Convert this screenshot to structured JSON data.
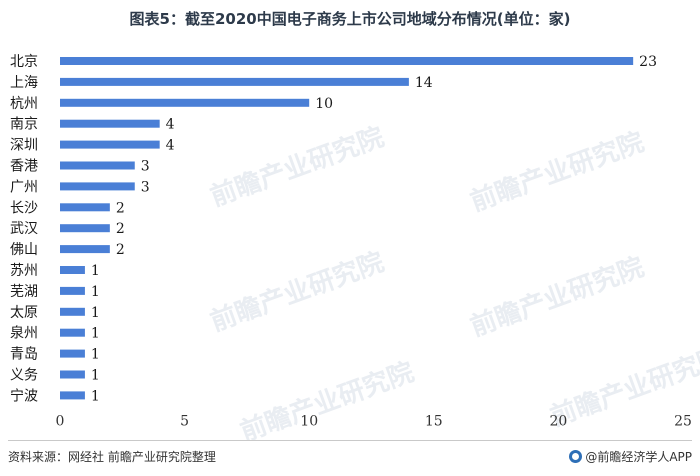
{
  "title": "图表5：截至2020中国电子商务上市公司地域分布情况(单位：家)",
  "source": "资料来源：网经社 前瞻产业研究院整理",
  "brand": "@前瞻经济学人APP",
  "watermark": "前瞻产业研究院",
  "colors": {
    "bar": "#4a7fd6",
    "grid": "#d9d9d9",
    "text": "#1a1a1a"
  },
  "chart_data": {
    "type": "bar",
    "orientation": "horizontal",
    "categories": [
      "北京",
      "上海",
      "杭州",
      "南京",
      "深圳",
      "香港",
      "广州",
      "长沙",
      "武汉",
      "佛山",
      "苏州",
      "芜湖",
      "太原",
      "泉州",
      "青岛",
      "义务",
      "宁波"
    ],
    "values": [
      23,
      14,
      10,
      4,
      4,
      3,
      3,
      2,
      2,
      2,
      1,
      1,
      1,
      1,
      1,
      1,
      1
    ],
    "xlim": [
      0,
      25
    ],
    "xticks": [
      0,
      5,
      10,
      15,
      20,
      25
    ],
    "data_labels": true,
    "grid": false
  }
}
